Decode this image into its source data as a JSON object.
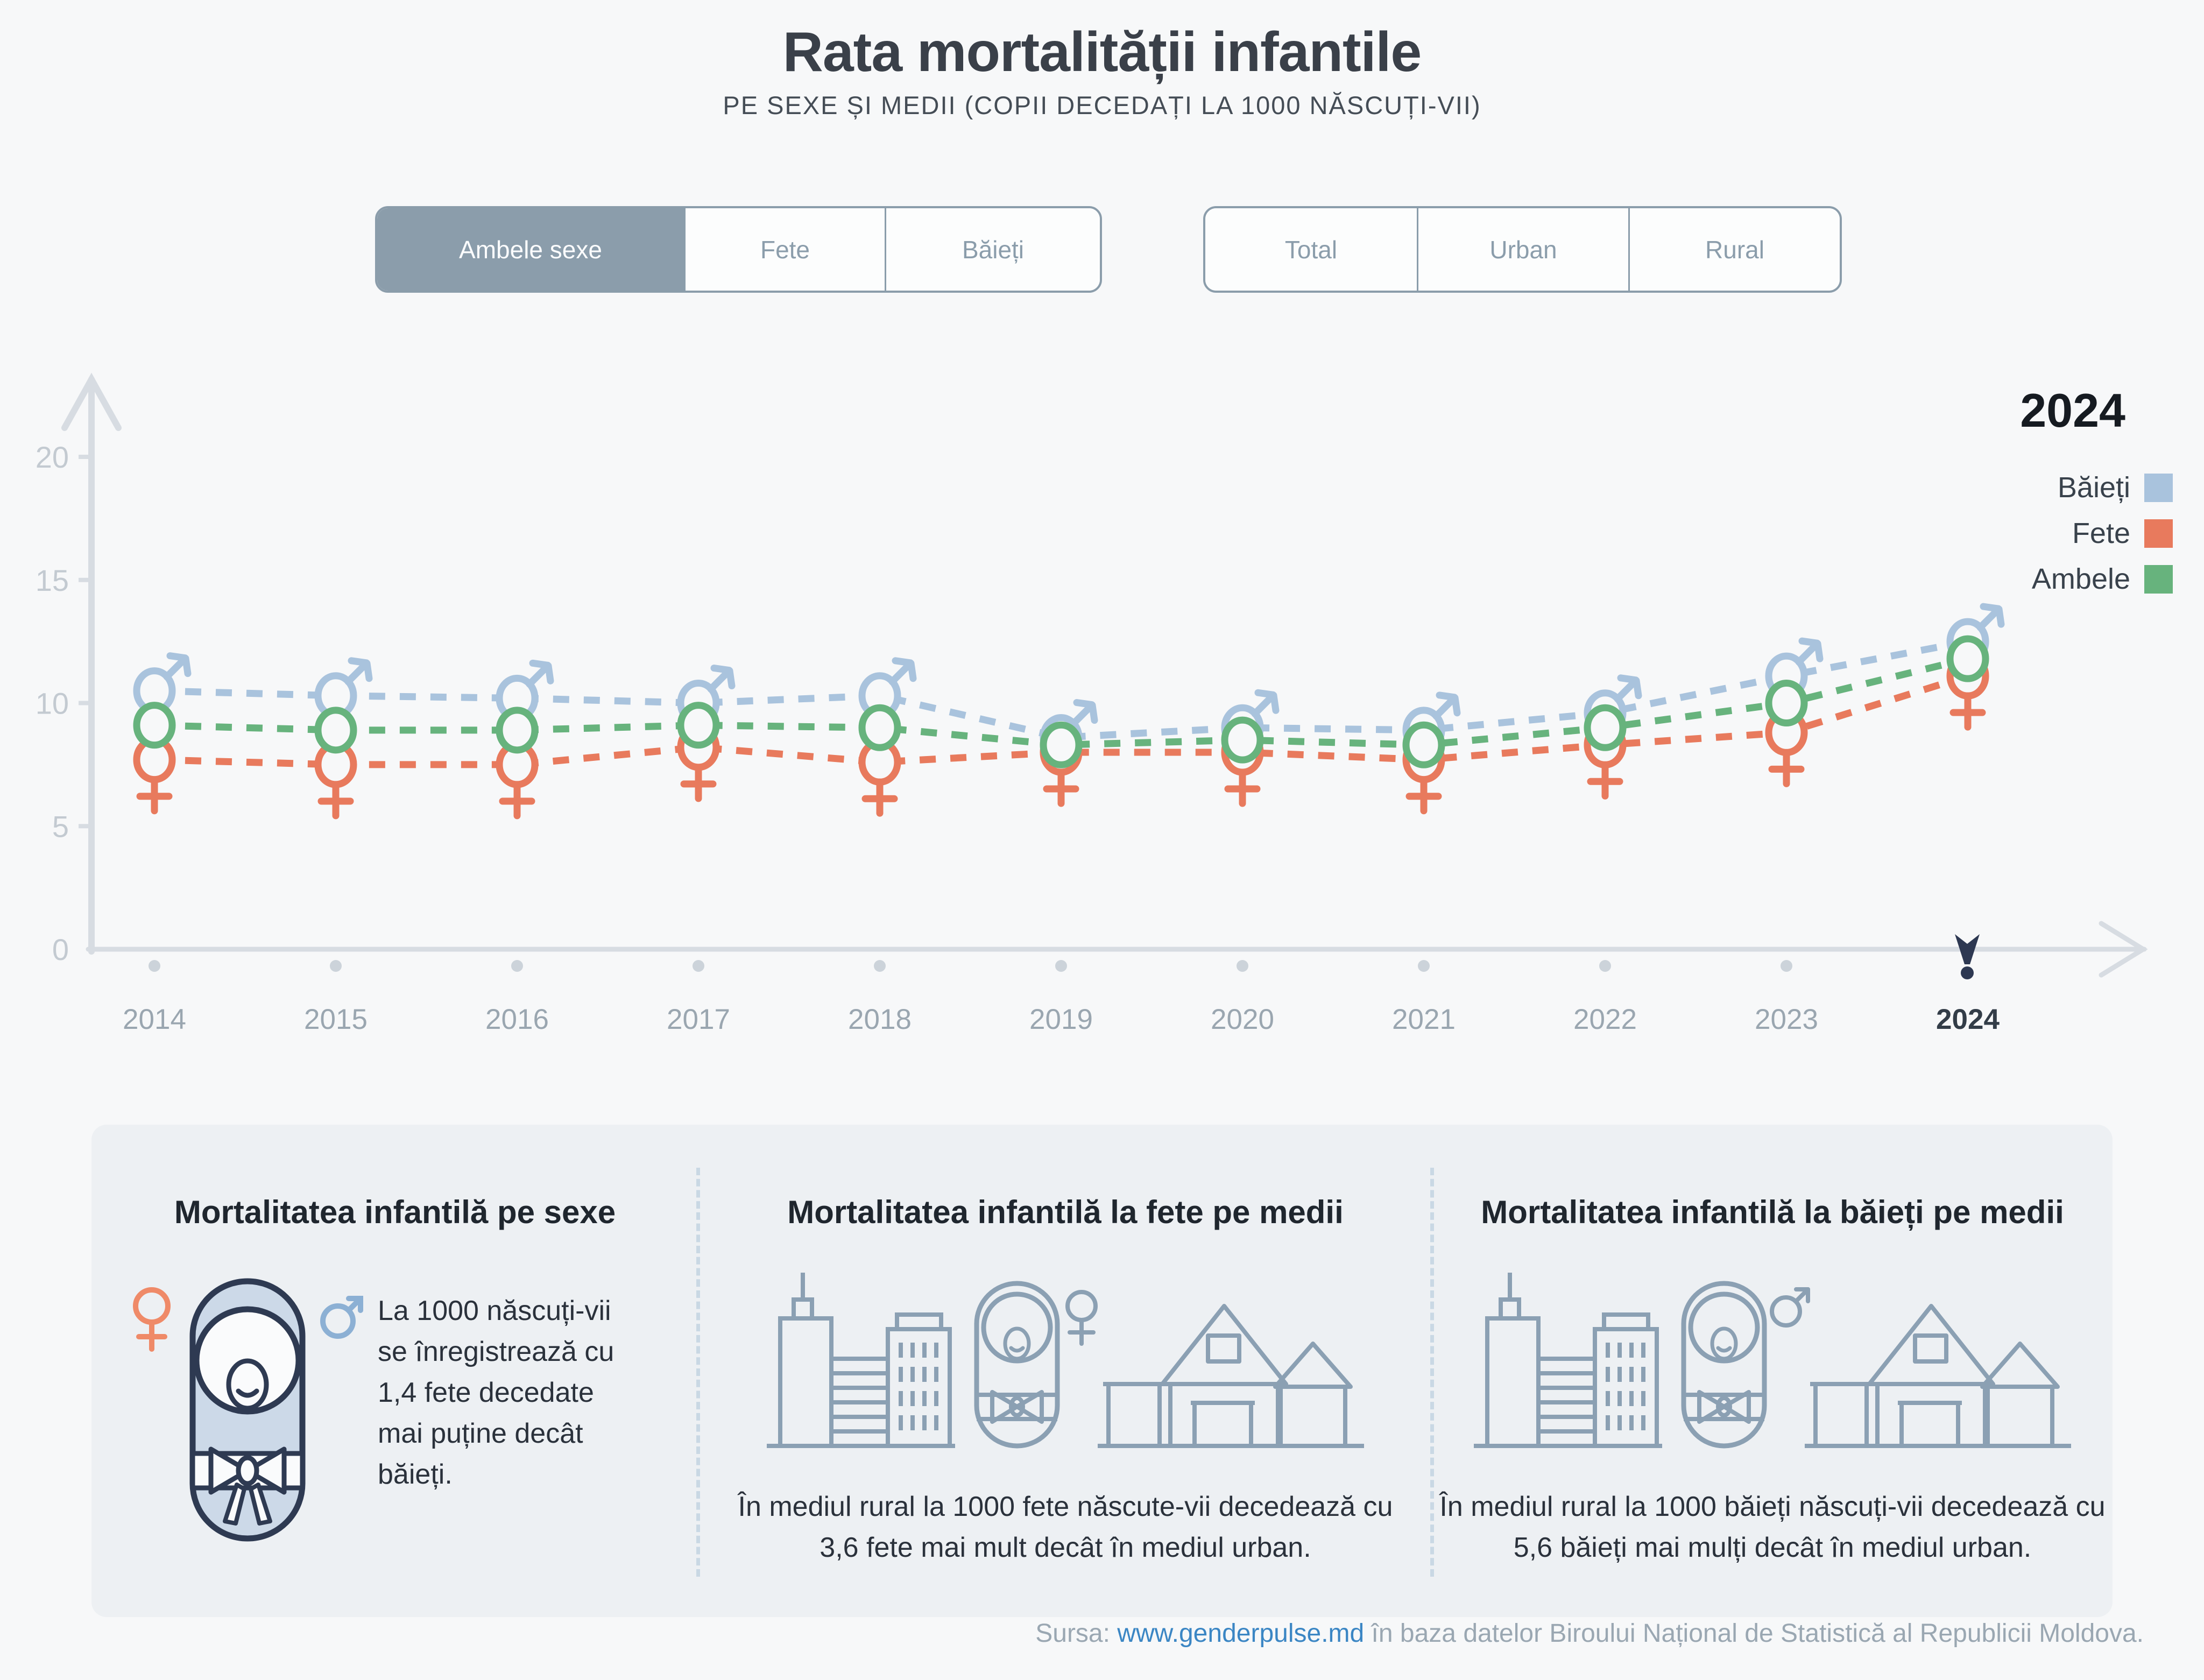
{
  "header": {
    "title": "Rata mortalității infantile",
    "subtitle": "PE SEXE ȘI MEDII (COPII DECEDAȚI LA 1000 NĂSCUȚI-VII)"
  },
  "filters": {
    "sex_toggle": [
      {
        "label": "Ambele sexe",
        "selected": true
      },
      {
        "label": "Fete",
        "selected": false
      },
      {
        "label": "Băieți",
        "selected": false
      }
    ],
    "area_toggle": [
      {
        "label": "Total",
        "selected": false
      },
      {
        "label": "Urban",
        "selected": false
      },
      {
        "label": "Rural",
        "selected": false
      }
    ]
  },
  "legend": {
    "year": "2024",
    "items": [
      {
        "label": "Băieți",
        "color": "#a9c3dd"
      },
      {
        "label": "Fete",
        "color": "#e87a5d"
      },
      {
        "label": "Ambele",
        "color": "#67b37d"
      }
    ]
  },
  "chart_data": {
    "type": "line",
    "title": "Rata mortalității infantile pe sexe",
    "x": [
      2014,
      2015,
      2016,
      2017,
      2018,
      2019,
      2020,
      2021,
      2022,
      2023,
      2024
    ],
    "series": [
      {
        "name": "Băieți",
        "marker": "male",
        "color": "#a9c3dd",
        "values": [
          10.5,
          10.3,
          10.2,
          10.0,
          10.3,
          8.6,
          9.0,
          8.9,
          9.6,
          11.1,
          12.5
        ]
      },
      {
        "name": "Fete",
        "marker": "female",
        "color": "#e87a5d",
        "values": [
          7.7,
          7.5,
          7.5,
          8.2,
          7.6,
          8.0,
          8.0,
          7.7,
          8.3,
          8.8,
          11.1
        ]
      },
      {
        "name": "Ambele",
        "marker": "circle",
        "color": "#67b37d",
        "values": [
          9.1,
          8.9,
          8.9,
          9.1,
          9.0,
          8.3,
          8.5,
          8.3,
          9.0,
          10.0,
          11.8
        ]
      }
    ],
    "ylim": [
      0,
      20
    ],
    "yticks": [
      0,
      5,
      10,
      15,
      20
    ],
    "xlabel": "",
    "ylabel": "",
    "grid": false,
    "line_style": "dashed",
    "legend_position": "top-right",
    "highlight_year": 2024
  },
  "cards": [
    {
      "title": "Mortalitatea infantilă pe sexe",
      "text": "La 1000 născuți-vii se înregistrează cu 1,4 fete decedate mai puține decât băieți.",
      "icons": [
        "female-symbol-icon",
        "swaddled-baby-icon",
        "male-symbol-icon"
      ]
    },
    {
      "title": "Mortalitatea infantilă la fete pe medii",
      "text": "În mediul rural la 1000 fete născute-vii decedează cu 3,6 fete mai mult decât în mediul urban.",
      "icons": [
        "city-buildings-icon",
        "swaddled-baby-icon",
        "female-symbol-icon",
        "rural-houses-icon"
      ]
    },
    {
      "title": "Mortalitatea infantilă la băieți pe medii",
      "text": "În mediul rural la 1000 băieți născuți-vii decedează cu 5,6 băieți mai mulți decât în mediul urban.",
      "icons": [
        "city-buildings-icon",
        "swaddled-baby-icon",
        "male-symbol-icon",
        "rural-houses-icon"
      ]
    }
  ],
  "footer": {
    "prefix": "Sursa: ",
    "link": "www.genderpulse.md",
    "suffix": " în baza datelor Biroului Național de Statistică al Republicii Moldova."
  }
}
